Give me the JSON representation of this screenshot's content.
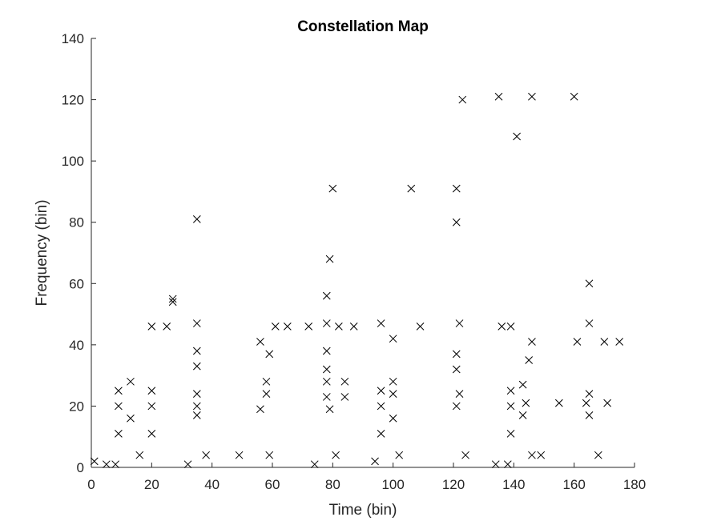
{
  "chart_data": {
    "type": "scatter",
    "title": "Constellation Map",
    "xlabel": "Time (bin)",
    "ylabel": "Frequency (bin)",
    "xlim": [
      0,
      180
    ],
    "ylim": [
      0,
      140
    ],
    "xticks": [
      0,
      20,
      40,
      60,
      80,
      100,
      120,
      140,
      160,
      180
    ],
    "yticks": [
      0,
      20,
      40,
      60,
      80,
      100,
      120,
      140
    ],
    "xtick_labels": [
      "0",
      "20",
      "40",
      "60",
      "80",
      "100",
      "120",
      "140",
      "160",
      "180"
    ],
    "ytick_labels": [
      "0",
      "20",
      "40",
      "60",
      "80",
      "100",
      "120",
      "140"
    ],
    "grid": false,
    "marker": "x",
    "marker_color": "#000000",
    "axis_color": "#262626",
    "points": [
      [
        1,
        2
      ],
      [
        5,
        1
      ],
      [
        8,
        1
      ],
      [
        9,
        25
      ],
      [
        9,
        20
      ],
      [
        9,
        11
      ],
      [
        13,
        28
      ],
      [
        13,
        16
      ],
      [
        16,
        4
      ],
      [
        20,
        46
      ],
      [
        20,
        25
      ],
      [
        20,
        20
      ],
      [
        20,
        11
      ],
      [
        25,
        46
      ],
      [
        27,
        55
      ],
      [
        27,
        54
      ],
      [
        32,
        1
      ],
      [
        35,
        81
      ],
      [
        35,
        47
      ],
      [
        35,
        38
      ],
      [
        35,
        33
      ],
      [
        35,
        24
      ],
      [
        35,
        20
      ],
      [
        35,
        17
      ],
      [
        38,
        4
      ],
      [
        49,
        4
      ],
      [
        56,
        41
      ],
      [
        56,
        19
      ],
      [
        58,
        28
      ],
      [
        58,
        24
      ],
      [
        59,
        37
      ],
      [
        59,
        4
      ],
      [
        61,
        46
      ],
      [
        65,
        46
      ],
      [
        72,
        46
      ],
      [
        74,
        1
      ],
      [
        78,
        56
      ],
      [
        78,
        47
      ],
      [
        78,
        38
      ],
      [
        78,
        32
      ],
      [
        78,
        28
      ],
      [
        78,
        23
      ],
      [
        79,
        68
      ],
      [
        79,
        19
      ],
      [
        80,
        91
      ],
      [
        81,
        4
      ],
      [
        82,
        46
      ],
      [
        84,
        28
      ],
      [
        84,
        23
      ],
      [
        87,
        46
      ],
      [
        94,
        2
      ],
      [
        96,
        47
      ],
      [
        96,
        25
      ],
      [
        96,
        20
      ],
      [
        96,
        11
      ],
      [
        100,
        42
      ],
      [
        100,
        28
      ],
      [
        100,
        24
      ],
      [
        100,
        16
      ],
      [
        102,
        4
      ],
      [
        106,
        91
      ],
      [
        109,
        46
      ],
      [
        121,
        91
      ],
      [
        121,
        80
      ],
      [
        121,
        37
      ],
      [
        121,
        32
      ],
      [
        121,
        20
      ],
      [
        122,
        47
      ],
      [
        122,
        24
      ],
      [
        123,
        120
      ],
      [
        124,
        4
      ],
      [
        134,
        1
      ],
      [
        135,
        121
      ],
      [
        136,
        46
      ],
      [
        138,
        1
      ],
      [
        139,
        46
      ],
      [
        139,
        25
      ],
      [
        139,
        20
      ],
      [
        139,
        11
      ],
      [
        141,
        108
      ],
      [
        143,
        27
      ],
      [
        143,
        17
      ],
      [
        144,
        21
      ],
      [
        145,
        35
      ],
      [
        146,
        121
      ],
      [
        146,
        41
      ],
      [
        146,
        4
      ],
      [
        149,
        4
      ],
      [
        155,
        21
      ],
      [
        160,
        121
      ],
      [
        161,
        41
      ],
      [
        164,
        21
      ],
      [
        165,
        60
      ],
      [
        165,
        47
      ],
      [
        165,
        24
      ],
      [
        165,
        17
      ],
      [
        168,
        4
      ],
      [
        170,
        41
      ],
      [
        171,
        21
      ],
      [
        175,
        41
      ]
    ]
  }
}
